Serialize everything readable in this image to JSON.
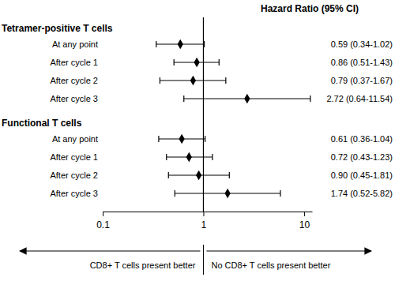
{
  "chart_data": {
    "type": "forest",
    "title": "Hazard Ratio (95% CI)",
    "series": [
      {
        "name": "Tetramer-positive T cells",
        "categories": [
          "At any point",
          "After cycle 1",
          "After cycle 2",
          "After cycle 3"
        ],
        "values": [
          0.59,
          0.86,
          0.79,
          2.72
        ],
        "lower": [
          0.34,
          0.51,
          0.37,
          0.64
        ],
        "upper": [
          1.02,
          1.43,
          1.67,
          11.54
        ],
        "value_labels": [
          "0.59 (0.34-1.02)",
          "0.86 (0.51-1.43)",
          "0.79 (0.37-1.67)",
          "2.72 (0.64-11.54)"
        ]
      },
      {
        "name": "Functional T cells",
        "categories": [
          "At any point",
          "After cycle 1",
          "After cycle 2",
          "After cycle 3"
        ],
        "values": [
          0.61,
          0.72,
          0.9,
          1.74
        ],
        "lower": [
          0.36,
          0.43,
          0.45,
          0.52
        ],
        "upper": [
          1.04,
          1.23,
          1.81,
          5.82
        ],
        "value_labels": [
          "0.61 (0.36-1.04)",
          "0.72 (0.43-1.23)",
          "0.90 (0.45-1.81)",
          "1.74 (0.52-5.82)"
        ]
      }
    ],
    "xlim": [
      0.1,
      12
    ],
    "xticks": [
      0.1,
      1,
      10
    ],
    "log": "x",
    "reference_line": 1,
    "annotations": [
      "CD8+ T cells present better",
      "No CD8+ T cells present better"
    ],
    "color": "#000000",
    "marker": "diamond"
  }
}
